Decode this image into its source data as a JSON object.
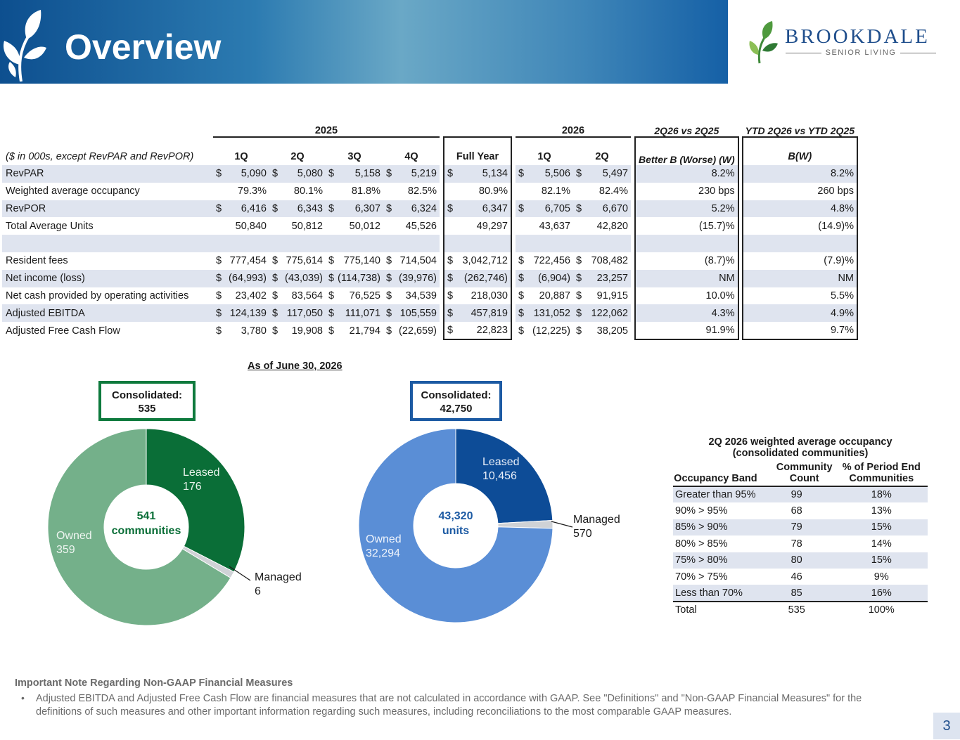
{
  "header": {
    "title": "Overview",
    "brand_name": "BROOKDALE",
    "brand_sub": "SENIOR LIVING"
  },
  "table": {
    "group_2025": "2025",
    "group_2026": "2026",
    "group_cmp": "2Q26 vs 2Q25",
    "group_ytd": "YTD 2Q26 vs YTD 2Q25",
    "unit_note": "($ in 000s, except RevPAR and RevPOR)",
    "col_headers": [
      "1Q",
      "2Q",
      "3Q",
      "4Q",
      "Full Year",
      "1Q",
      "2Q",
      "Better B (Worse) (W)",
      "B(W)"
    ],
    "rows": [
      {
        "label": "RevPAR",
        "cur": true,
        "v": [
          "5,090",
          "5,080",
          "5,158",
          "5,219",
          "5,134",
          "5,506",
          "5,497"
        ],
        "cmp": "8.2%",
        "ytd": "8.2%"
      },
      {
        "label": "Weighted average occupancy",
        "cur": false,
        "v": [
          "79.3%",
          "80.1%",
          "81.8%",
          "82.5%",
          "80.9%",
          "82.1%",
          "82.4%"
        ],
        "cmp": "230 bps",
        "ytd": "260 bps"
      },
      {
        "label": "RevPOR",
        "cur": true,
        "v": [
          "6,416",
          "6,343",
          "6,307",
          "6,324",
          "6,347",
          "6,705",
          "6,670"
        ],
        "cmp": "5.2%",
        "ytd": "4.8%"
      },
      {
        "label": "Total Average Units",
        "cur": false,
        "v": [
          "50,840",
          "50,812",
          "50,012",
          "45,526",
          "49,297",
          "43,637",
          "42,820"
        ],
        "cmp": "(15.7)%",
        "ytd": "(14.9)%"
      },
      {
        "label": "",
        "cur": false,
        "v": [
          "",
          "",
          "",
          "",
          "",
          "",
          ""
        ],
        "cmp": "",
        "ytd": ""
      },
      {
        "label": "Resident fees",
        "cur": true,
        "v": [
          "777,454",
          "775,614",
          "775,140",
          "714,504",
          "3,042,712",
          "722,456",
          "708,482"
        ],
        "cmp": "(8.7)%",
        "ytd": "(7.9)%"
      },
      {
        "label": "Net income (loss)",
        "cur": true,
        "v": [
          "(64,993)",
          "(43,039)",
          "(114,738)",
          "(39,976)",
          "(262,746)",
          "(6,904)",
          "23,257"
        ],
        "cmp": "NM",
        "ytd": "NM"
      },
      {
        "label": "Net cash provided by operating activities",
        "cur": true,
        "v": [
          "23,402",
          "83,564",
          "76,525",
          "34,539",
          "218,030",
          "20,887",
          "91,915"
        ],
        "cmp": "10.0%",
        "ytd": "5.5%"
      },
      {
        "label": "Adjusted EBITDA",
        "cur": true,
        "v": [
          "124,139",
          "117,050",
          "111,071",
          "105,559",
          "457,819",
          "131,052",
          "122,062"
        ],
        "cmp": "4.3%",
        "ytd": "4.9%"
      },
      {
        "label": "Adjusted Free Cash Flow",
        "cur": true,
        "v": [
          "3,780",
          "19,908",
          "21,794",
          "(22,659)",
          "22,823",
          "(12,225)",
          "38,205"
        ],
        "cmp": "91.9%",
        "ytd": "9.7%"
      }
    ]
  },
  "as_of": "As of June 30, 2026",
  "donut_communities": {
    "consolidated_label": "Consolidated:",
    "consolidated_value": "535",
    "center_value": "541",
    "center_unit": "communities",
    "slices": [
      {
        "name": "Leased",
        "value": 176,
        "value_text": "176",
        "color": "#0a6e37"
      },
      {
        "name": "Managed",
        "value": 6,
        "value_text": "6",
        "color": "#cfd2d6"
      },
      {
        "name": "Owned",
        "value": 359,
        "value_text": "359",
        "color": "#74b08a"
      }
    ]
  },
  "donut_units": {
    "consolidated_label": "Consolidated:",
    "consolidated_value": "42,750",
    "center_value": "43,320",
    "center_unit": "units",
    "slices": [
      {
        "name": "Leased",
        "value": 10456,
        "value_text": "10,456",
        "color": "#0d4c97"
      },
      {
        "name": "Managed",
        "value": 570,
        "value_text": "570",
        "color": "#cfd2d6"
      },
      {
        "name": "Owned",
        "value": 32294,
        "value_text": "32,294",
        "color": "#5a8ed6"
      }
    ]
  },
  "occupancy": {
    "title_line1": "2Q 2026 weighted average occupancy",
    "title_line2": "(consolidated communities)",
    "headers": [
      "Occupancy Band",
      "Community Count",
      "% of Period End Communities"
    ],
    "rows": [
      [
        "Greater than 95%",
        "99",
        "18%"
      ],
      [
        "90% > 95%",
        "68",
        "13%"
      ],
      [
        "85% > 90%",
        "79",
        "15%"
      ],
      [
        "80% > 85%",
        "78",
        "14%"
      ],
      [
        "75% > 80%",
        "80",
        "15%"
      ],
      [
        "70% > 75%",
        "46",
        "9%"
      ],
      [
        "Less than 70%",
        "85",
        "16%"
      ],
      [
        "Total",
        "535",
        "100%"
      ]
    ]
  },
  "note": {
    "title": "Important Note Regarding Non-GAAP Financial Measures",
    "bullet": "•",
    "body": "Adjusted EBITDA and Adjusted Free Cash Flow are financial measures that are not calculated in accordance with GAAP. See \"Definitions\" and \"Non-GAAP Financial Measures\" for the definitions of such measures and other important information regarding such measures, including reconciliations to the most comparable GAAP measures."
  },
  "page_number": "3",
  "colors": {
    "header_blue": "#1560a6",
    "row_shade": "#dfe4ef",
    "green_accent": "#0e7a3d",
    "blue_accent": "#1c5aa3"
  }
}
